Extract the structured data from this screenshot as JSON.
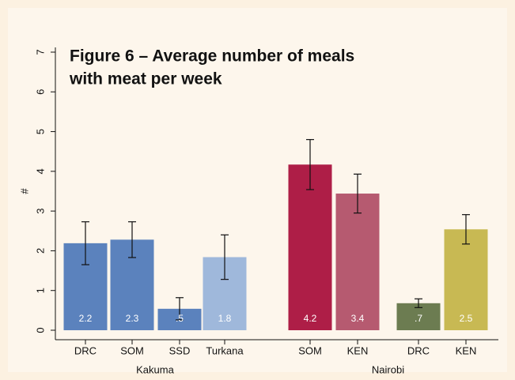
{
  "chart_data": {
    "type": "bar",
    "title": [
      "Figure 6 – Average number of meals",
      "with meat per week"
    ],
    "y_label": "#",
    "ylim": [
      0,
      7
    ],
    "yticks": [
      0,
      1,
      2,
      3,
      4,
      5,
      6,
      7
    ],
    "grid": false,
    "groups": [
      {
        "name": "Kakuma",
        "categories": [
          "DRC",
          "SOM",
          "SSD",
          "Turkana"
        ],
        "values": [
          2.19,
          2.28,
          0.54,
          1.84
        ],
        "value_labels": [
          "2.2",
          "2.3",
          ".5",
          "1.8"
        ],
        "errors": [
          0.54,
          0.45,
          0.28,
          0.56
        ],
        "colors": [
          "#5b82bd",
          "#5b82bd",
          "#5b82bd",
          "#9fb8db"
        ]
      },
      {
        "name": "Nairobi",
        "categories": [
          "SOM",
          "KEN",
          "DRC",
          "KEN"
        ],
        "values": [
          4.17,
          3.44,
          0.68,
          2.54
        ],
        "value_labels": [
          "4.2",
          "3.4",
          ".7",
          "2.5"
        ],
        "errors": [
          0.63,
          0.49,
          0.11,
          0.37
        ],
        "colors": [
          "#ae1e47",
          "#b65a70",
          "#6c7c51",
          "#c8b953"
        ]
      }
    ]
  }
}
